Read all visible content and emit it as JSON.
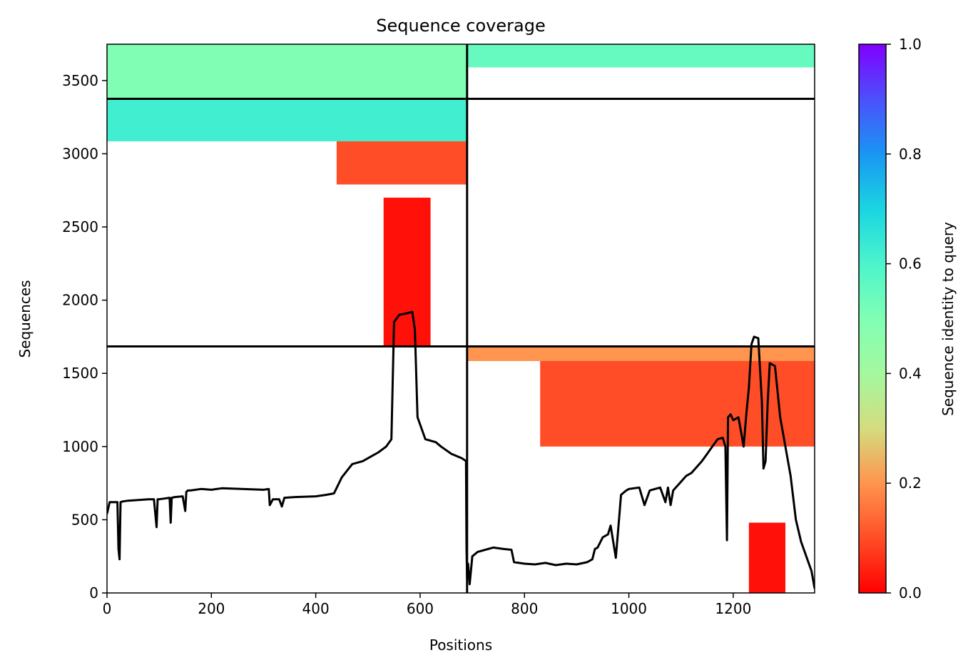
{
  "chart_data": {
    "type": "heatmap",
    "title": "Sequence coverage",
    "xlabel": "Positions",
    "ylabel": "Sequences",
    "xlim": [
      0,
      1356
    ],
    "ylim": [
      0,
      3748
    ],
    "x_ticks": [
      0,
      200,
      400,
      600,
      800,
      1000,
      1200
    ],
    "y_ticks": [
      0,
      500,
      1000,
      1500,
      2000,
      2500,
      3000,
      3500
    ],
    "colorbar": {
      "label": "Sequence identity to query",
      "range": [
        0,
        1
      ],
      "ticks": [
        0.0,
        0.2,
        0.4,
        0.6,
        0.8,
        1.0
      ],
      "tick_labels": [
        "0.0",
        "0.2",
        "0.4",
        "0.6",
        "0.8",
        "1.0"
      ],
      "colormap": "rainbow_r"
    },
    "block_boundaries": {
      "x": [
        690
      ],
      "y": [
        1684,
        3375
      ]
    },
    "coverage_regions": [
      {
        "x": [
          0,
          690
        ],
        "y": [
          3375,
          3748
        ],
        "identity": 0.5
      },
      {
        "x": [
          0,
          690
        ],
        "y": [
          3085,
          3375
        ],
        "identity": 0.62
      },
      {
        "x": [
          440,
          690
        ],
        "y": [
          2790,
          3085
        ],
        "identity": 0.1
      },
      {
        "x": [
          530,
          620
        ],
        "y": [
          1684,
          2700
        ],
        "identity": 0.02
      },
      {
        "x": [
          690,
          1356
        ],
        "y": [
          3590,
          3748
        ],
        "identity": 0.55
      },
      {
        "x": [
          690,
          1356
        ],
        "y": [
          1584,
          1684
        ],
        "identity": 0.2
      },
      {
        "x": [
          830,
          1356
        ],
        "y": [
          1000,
          1584
        ],
        "identity": 0.1
      },
      {
        "x": [
          1230,
          1300
        ],
        "y": [
          0,
          480
        ],
        "identity": 0.02
      }
    ],
    "series": [
      {
        "name": "",
        "color": "#000000",
        "x": [
          0,
          5,
          12,
          20,
          22,
          24,
          26,
          30,
          40,
          60,
          80,
          90,
          95,
          97,
          100,
          110,
          120,
          122,
          124,
          130,
          145,
          150,
          152,
          155,
          160,
          180,
          200,
          220,
          300,
          310,
          312,
          318,
          330,
          335,
          340,
          360,
          400,
          420,
          435,
          450,
          470,
          490,
          500,
          520,
          535,
          545,
          550,
          560,
          575,
          585,
          590,
          595,
          610,
          630,
          640,
          660,
          680,
          688,
          689,
          690,
          691,
          692,
          695,
          700,
          710,
          720,
          740,
          760,
          775,
          780,
          800,
          820,
          840,
          860,
          880,
          900,
          920,
          930,
          935,
          940,
          950,
          960,
          965,
          975,
          980,
          985,
          995,
          1000,
          1020,
          1030,
          1040,
          1050,
          1060,
          1070,
          1075,
          1080,
          1085,
          1090,
          1100,
          1110,
          1120,
          1130,
          1140,
          1150,
          1160,
          1170,
          1180,
          1185,
          1188,
          1190,
          1195,
          1200,
          1210,
          1220,
          1225,
          1230,
          1235,
          1240,
          1248,
          1255,
          1258,
          1262,
          1266,
          1270,
          1280,
          1290,
          1300,
          1310,
          1320,
          1330,
          1340,
          1350,
          1356
        ],
        "y": [
          540,
          620,
          620,
          620,
          300,
          230,
          620,
          625,
          630,
          635,
          640,
          640,
          450,
          640,
          640,
          645,
          650,
          480,
          650,
          655,
          660,
          560,
          690,
          700,
          700,
          710,
          705,
          715,
          705,
          710,
          600,
          640,
          640,
          590,
          650,
          655,
          660,
          670,
          680,
          790,
          880,
          900,
          920,
          960,
          1000,
          1050,
          1850,
          1900,
          1910,
          1920,
          1800,
          1200,
          1050,
          1030,
          1000,
          950,
          920,
          900,
          300,
          100,
          180,
          200,
          60,
          250,
          280,
          290,
          310,
          300,
          295,
          210,
          200,
          195,
          205,
          190,
          200,
          195,
          210,
          230,
          300,
          310,
          380,
          400,
          460,
          240,
          450,
          670,
          700,
          710,
          720,
          600,
          700,
          710,
          720,
          620,
          720,
          600,
          700,
          720,
          760,
          800,
          820,
          860,
          900,
          950,
          1000,
          1050,
          1060,
          1000,
          360,
          1200,
          1220,
          1180,
          1200,
          1000,
          1220,
          1400,
          1700,
          1750,
          1740,
          1300,
          850,
          900,
          1300,
          1570,
          1550,
          1200,
          1000,
          800,
          500,
          350,
          250,
          150,
          30
        ]
      }
    ]
  }
}
